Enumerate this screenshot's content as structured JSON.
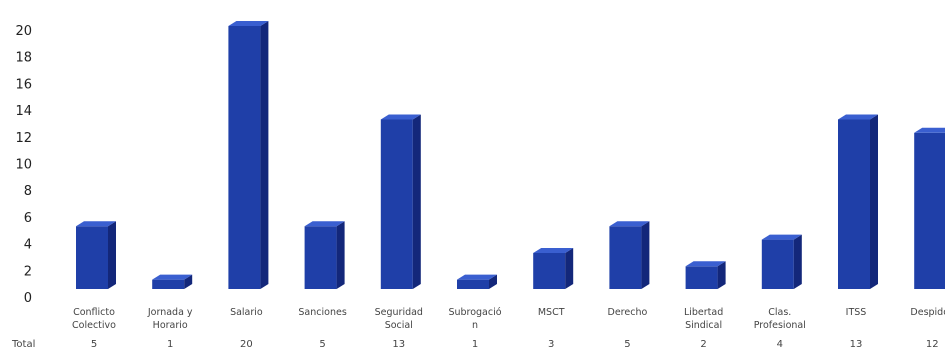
{
  "chart_data": {
    "type": "bar",
    "style": "3d-column",
    "bar_color": "#1f3fa8",
    "bar_side_color": "#13277a",
    "bar_top_color": "#3a5fd0",
    "categories": [
      [
        "Conflicto",
        "Colectivo"
      ],
      [
        "Jornada y",
        "Horario"
      ],
      [
        "Salario"
      ],
      [
        "Sanciones"
      ],
      [
        "Seguridad",
        "Social"
      ],
      [
        "Subrogació",
        "n"
      ],
      [
        "MSCT"
      ],
      [
        "Derecho"
      ],
      [
        "Libertad",
        "Sindical"
      ],
      [
        "Clas.",
        "Profesional"
      ],
      [
        "ITSS"
      ],
      [
        "Despidos"
      ]
    ],
    "values": [
      5,
      1,
      20,
      5,
      13,
      1,
      3,
      5,
      2,
      4,
      13,
      12
    ],
    "totals_label": "Total",
    "ylim": [
      0,
      20
    ],
    "yticks": [
      0,
      2,
      4,
      6,
      8,
      10,
      12,
      14,
      16,
      18,
      20
    ],
    "grid": false,
    "legend": "none"
  }
}
